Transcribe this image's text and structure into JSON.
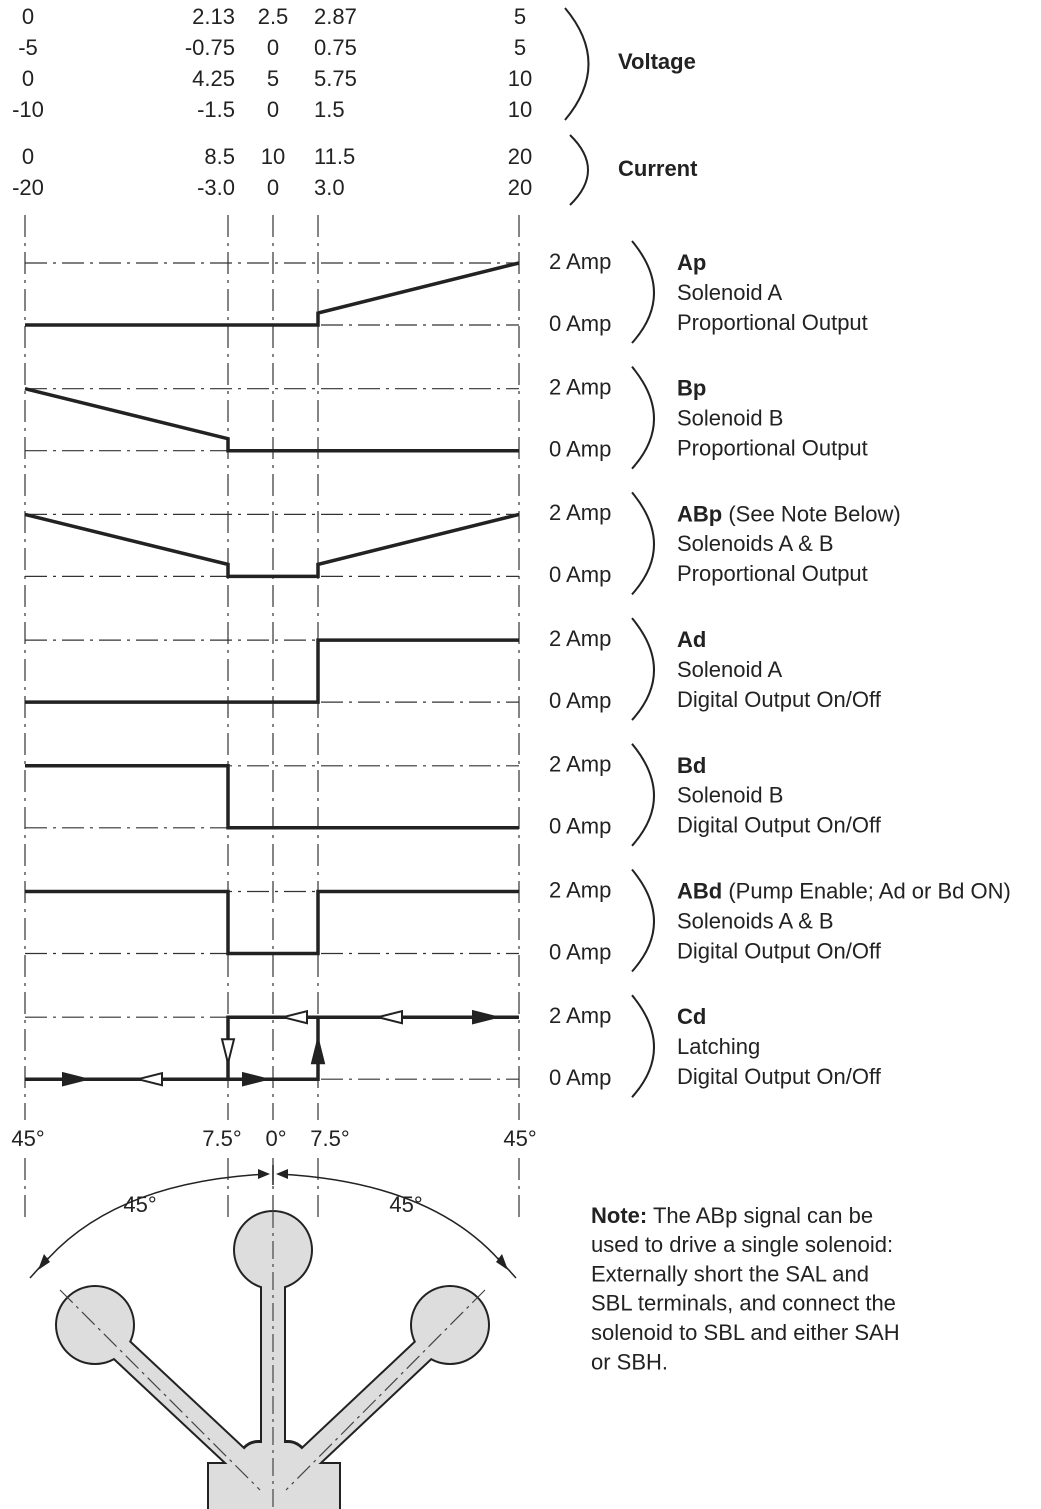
{
  "scales": {
    "voltage": {
      "label": "Voltage",
      "rows": [
        [
          "0",
          "2.13",
          "2.5",
          "2.87",
          "5"
        ],
        [
          "-5",
          "-0.75",
          "0",
          "0.75",
          "5"
        ],
        [
          "0",
          "4.25",
          "5",
          "5.75",
          "10"
        ],
        [
          "-10",
          "-1.5",
          "0",
          "1.5",
          "10"
        ]
      ]
    },
    "current": {
      "label": "Current",
      "rows": [
        [
          "0",
          "8.5",
          "10",
          "11.5",
          "20"
        ],
        [
          "-20",
          "-3.0",
          "0",
          "3.0",
          "20"
        ]
      ]
    }
  },
  "channels": [
    {
      "high": "2 Amp",
      "low": "0 Amp",
      "name": "Ap",
      "lines": [
        "Solenoid A",
        "Proportional Output"
      ]
    },
    {
      "high": "2 Amp",
      "low": "0 Amp",
      "name": "Bp",
      "lines": [
        "Solenoid B",
        "Proportional Output"
      ]
    },
    {
      "high": "2 Amp",
      "low": "0 Amp",
      "name": "ABp",
      "note": "(See Note Below)",
      "lines": [
        "Solenoids A & B",
        "Proportional Output"
      ]
    },
    {
      "high": "2 Amp",
      "low": "0 Amp",
      "name": "Ad",
      "lines": [
        "Solenoid A",
        "Digital Output On/Off"
      ]
    },
    {
      "high": "2 Amp",
      "low": "0 Amp",
      "name": "Bd",
      "lines": [
        "Solenoid B",
        "Digital Output On/Off"
      ]
    },
    {
      "high": "2 Amp",
      "low": "0 Amp",
      "name": "ABd",
      "note": "(Pump Enable; Ad or Bd ON)",
      "lines": [
        "Solenoids A & B",
        "Digital Output On/Off"
      ]
    },
    {
      "high": "2 Amp",
      "low": "0 Amp",
      "name": "Cd",
      "lines": [
        "Latching",
        "Digital Output On/Off"
      ]
    }
  ],
  "angles": [
    "45°",
    "7.5°",
    "0°",
    "7.5°",
    "45°"
  ],
  "joystick": {
    "left": "45°",
    "right": "45°"
  },
  "note": {
    "label": "Note:",
    "lines": [
      "The ABp signal can be",
      "used to drive a single solenoid:",
      "Externally short the SAL and",
      "SBL terminals, and connect the",
      "solenoid to SBL and either SAH",
      "or SBH."
    ]
  }
}
